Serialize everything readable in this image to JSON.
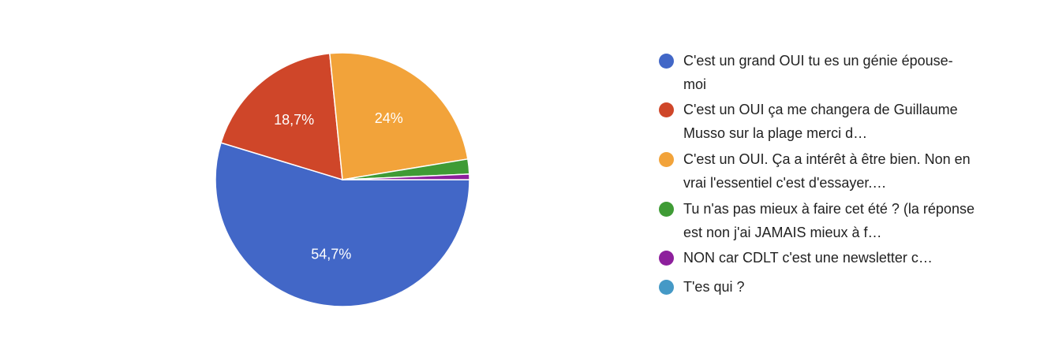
{
  "chart_data": {
    "type": "pie",
    "categories": [
      "C'est un grand OUI tu es un génie épouse-moi",
      "C'est un OUI ça me changera de Guillaume Musso sur la plage merci d…",
      "C'est un OUI. Ça a intérêt à être bien. Non en vrai l'essentiel c'est d'essayer.…",
      "Tu n'as pas mieux à faire cet été ? (la réponse est non j'ai JAMAIS mieux à f…",
      "NON car CDLT c'est une newsletter c…",
      "T'es qui ?"
    ],
    "values": [
      54.7,
      18.7,
      24,
      1.9,
      0.7,
      0
    ],
    "value_labels": [
      "54,7%",
      "18,7%",
      "24%",
      null,
      null,
      null
    ],
    "colors": [
      "#4267c7",
      "#cf4629",
      "#f2a33a",
      "#3f9b35",
      "#8d1f9c",
      "#4599c6"
    ],
    "legend": "right"
  }
}
